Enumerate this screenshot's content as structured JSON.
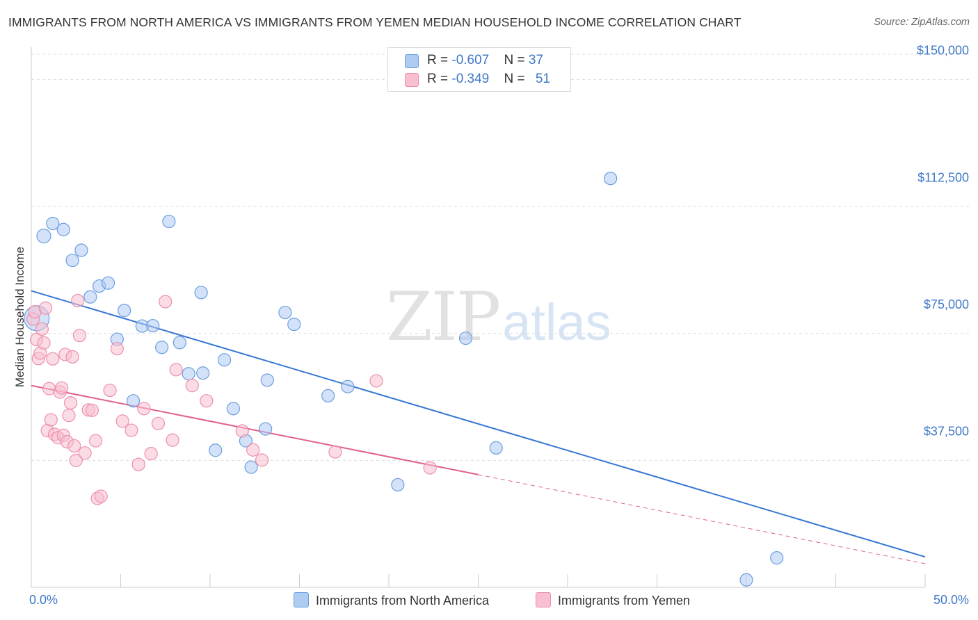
{
  "title": "IMMIGRANTS FROM NORTH AMERICA VS IMMIGRANTS FROM YEMEN MEDIAN HOUSEHOLD INCOME CORRELATION CHART",
  "source": "Source: ZipAtlas.com",
  "watermark": {
    "zip": "ZIP",
    "atlas": "atlas"
  },
  "legend": {
    "rows": [
      {
        "r_label": "R = ",
        "r_value": "-0.607",
        "n_label": "N = ",
        "n_value": "37",
        "color": "#aecbf2"
      },
      {
        "r_label": "R = ",
        "r_value": "-0.349",
        "n_label": "N = ",
        "n_value": "51",
        "color": "#f8bfd0"
      }
    ]
  },
  "colors": {
    "blue_fill": "#aecbf2",
    "blue_stroke": "#6a9ee0",
    "blue_line": "#3676d3",
    "pink_fill": "#f8bfd0",
    "pink_stroke": "#ec8fab",
    "pink_line": "#e0608c",
    "grid": "#dddddd",
    "axis_text": "#3f78c8"
  },
  "chart_data": {
    "type": "scatter",
    "title": "IMMIGRANTS FROM NORTH AMERICA VS IMMIGRANTS FROM YEMEN MEDIAN HOUSEHOLD INCOME CORRELATION CHART",
    "ylabel": "Median Household Income",
    "xlabel": "",
    "xlim": [
      0,
      50
    ],
    "ylim": [
      0,
      157500
    ],
    "x_tick_labels": [
      "0.0%",
      "50.0%"
    ],
    "y_ticks": [
      {
        "value": 37500,
        "label": "$37,500"
      },
      {
        "value": 75000,
        "label": "$75,000"
      },
      {
        "value": 112500,
        "label": "$112,500"
      },
      {
        "value": 150000,
        "label": "$150,000"
      }
    ],
    "grid": "horizontal dashed",
    "legend_position": "bottom",
    "series": [
      {
        "name": "Immigrants from North America",
        "color": "#aecbf2",
        "trend": {
          "x": [
            0,
            50
          ],
          "y": [
            87600,
            9000
          ],
          "style": "solid"
        },
        "points": [
          [
            0.3,
            79500,
            18
          ],
          [
            0.7,
            103800,
            10
          ],
          [
            1.2,
            107500,
            9
          ],
          [
            1.8,
            105700,
            9
          ],
          [
            2.3,
            96600,
            9
          ],
          [
            2.8,
            99600,
            9
          ],
          [
            3.3,
            85800,
            9
          ],
          [
            3.8,
            89000,
            9
          ],
          [
            4.3,
            89900,
            9
          ],
          [
            4.8,
            73300,
            9
          ],
          [
            5.2,
            81800,
            9
          ],
          [
            5.7,
            55100,
            9
          ],
          [
            6.2,
            77200,
            9
          ],
          [
            6.8,
            77300,
            9
          ],
          [
            7.3,
            70900,
            9
          ],
          [
            7.7,
            108100,
            9
          ],
          [
            8.3,
            72300,
            9
          ],
          [
            8.8,
            63100,
            9
          ],
          [
            9.5,
            87100,
            9
          ],
          [
            9.6,
            63300,
            9
          ],
          [
            10.3,
            40500,
            9
          ],
          [
            10.8,
            67200,
            9
          ],
          [
            11.3,
            52800,
            9
          ],
          [
            12.0,
            43300,
            9
          ],
          [
            12.3,
            35500,
            9
          ],
          [
            13.1,
            46800,
            9
          ],
          [
            13.2,
            61200,
            9
          ],
          [
            14.2,
            81200,
            9
          ],
          [
            14.7,
            77700,
            9
          ],
          [
            16.6,
            56600,
            9
          ],
          [
            17.7,
            59300,
            9
          ],
          [
            20.5,
            30300,
            9
          ],
          [
            24.3,
            73600,
            9
          ],
          [
            26.0,
            41200,
            9
          ],
          [
            32.4,
            120800,
            9
          ],
          [
            41.7,
            8700,
            9
          ],
          [
            40.0,
            2200,
            9
          ]
        ]
      },
      {
        "name": "Immigrants from Yemen",
        "color": "#f8bfd0",
        "trend": {
          "x": [
            0,
            25
          ],
          "y": [
            59600,
            33300
          ],
          "style": "solid"
        },
        "trend_extension": {
          "x": [
            25,
            50
          ],
          "y": [
            33300,
            7000
          ],
          "style": "dashed"
        },
        "points": [
          [
            0.1,
            79300,
            9
          ],
          [
            0.2,
            81400,
            9
          ],
          [
            0.3,
            73200,
            9
          ],
          [
            0.4,
            67600,
            9
          ],
          [
            0.5,
            69200,
            9
          ],
          [
            0.6,
            76300,
            9
          ],
          [
            0.7,
            72200,
            9
          ],
          [
            0.8,
            82500,
            9
          ],
          [
            0.9,
            46300,
            9
          ],
          [
            1.0,
            58700,
            9
          ],
          [
            1.1,
            49500,
            9
          ],
          [
            1.2,
            67500,
            9
          ],
          [
            1.3,
            45200,
            9
          ],
          [
            1.5,
            44200,
            9
          ],
          [
            1.6,
            57700,
            9
          ],
          [
            1.7,
            58900,
            9
          ],
          [
            1.8,
            44900,
            9
          ],
          [
            1.9,
            68800,
            9
          ],
          [
            2.0,
            43000,
            9
          ],
          [
            2.1,
            50800,
            9
          ],
          [
            2.2,
            54500,
            9
          ],
          [
            2.3,
            68100,
            9
          ],
          [
            2.4,
            41800,
            9
          ],
          [
            2.5,
            37500,
            9
          ],
          [
            2.6,
            84700,
            9
          ],
          [
            2.7,
            74400,
            9
          ],
          [
            3.0,
            39700,
            9
          ],
          [
            3.2,
            52400,
            9
          ],
          [
            3.4,
            52300,
            9
          ],
          [
            3.6,
            43300,
            9
          ],
          [
            3.7,
            26300,
            9
          ],
          [
            3.9,
            26900,
            9
          ],
          [
            4.4,
            58200,
            9
          ],
          [
            4.8,
            70500,
            9
          ],
          [
            5.1,
            49100,
            9
          ],
          [
            5.6,
            46400,
            9
          ],
          [
            6.0,
            36300,
            9
          ],
          [
            6.3,
            52800,
            9
          ],
          [
            6.7,
            39500,
            9
          ],
          [
            7.1,
            48400,
            9
          ],
          [
            7.5,
            84400,
            9
          ],
          [
            7.9,
            43500,
            9
          ],
          [
            8.1,
            64300,
            9
          ],
          [
            9.0,
            59600,
            9
          ],
          [
            9.8,
            55100,
            9
          ],
          [
            11.8,
            46200,
            9
          ],
          [
            12.4,
            40600,
            9
          ],
          [
            12.9,
            37600,
            9
          ],
          [
            17.0,
            40000,
            9
          ],
          [
            19.3,
            61000,
            9
          ],
          [
            22.3,
            35300,
            9
          ]
        ]
      }
    ]
  }
}
